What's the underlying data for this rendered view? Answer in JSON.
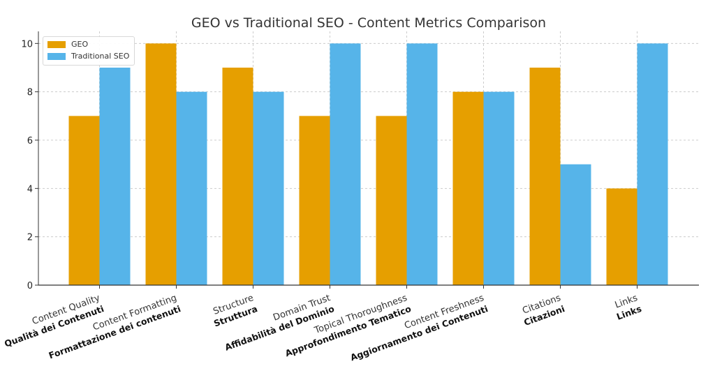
{
  "chart_data": {
    "type": "bar",
    "title": "GEO vs Traditional SEO - Content Metrics Comparison",
    "xlabel": "",
    "ylabel": "",
    "ylim": [
      0,
      10.5
    ],
    "yticks": [
      0,
      2,
      4,
      6,
      8,
      10
    ],
    "grid": true,
    "legend_position": "top-left",
    "categories": [
      "Content Quality",
      "Content Formatting",
      "Structure",
      "Domain Trust",
      "Topical Thoroughness",
      "Content Freshness",
      "Citations",
      "Links"
    ],
    "category_translations": [
      "Qualità dei Contenuti",
      "Formattazione dei contenuti",
      "Struttura",
      "Affidabilità del Dominio",
      "Approfondimento Tematico",
      "Aggiornamento dei Contenuti",
      "Citazioni",
      "Links"
    ],
    "series": [
      {
        "name": "GEO",
        "color": "#E69F00",
        "values": [
          7,
          10,
          9,
          7,
          7,
          8,
          9,
          4
        ]
      },
      {
        "name": "Traditional SEO",
        "color": "#56B4E9",
        "values": [
          9,
          8,
          8,
          10,
          10,
          8,
          5,
          10
        ]
      }
    ]
  }
}
